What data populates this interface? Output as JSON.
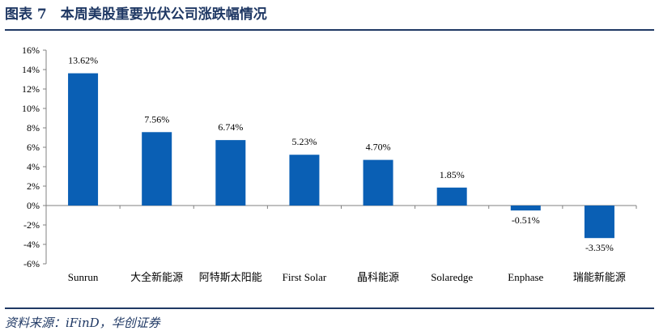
{
  "figure": {
    "title": "图表 7　本周美股重要光伏公司涨跌幅情况",
    "source": "资料来源：iFinD，华创证券"
  },
  "chart_data": {
    "type": "bar",
    "categories": [
      "Sunrun",
      "大全新能源",
      "阿特斯太阳能",
      "First Solar",
      "晶科能源",
      "Solaredge",
      "Enphase",
      "瑞能新能源"
    ],
    "values": [
      13.62,
      7.56,
      6.74,
      5.23,
      4.7,
      1.85,
      -0.51,
      -3.35
    ],
    "data_labels": [
      "13.62%",
      "7.56%",
      "6.74%",
      "5.23%",
      "4.70%",
      "1.85%",
      "-0.51%",
      "-3.35%"
    ],
    "ylim": [
      -6,
      16
    ],
    "y_ticks": [
      16,
      14,
      12,
      10,
      8,
      6,
      4,
      2,
      0,
      -2,
      -4,
      -6
    ],
    "y_tick_labels": [
      "16%",
      "14%",
      "12%",
      "10%",
      "8%",
      "6%",
      "4%",
      "2%",
      "0%",
      "-2%",
      "-4%",
      "-6%"
    ],
    "bar_color": "#0a5fb4",
    "grid": false,
    "legend": "none"
  }
}
